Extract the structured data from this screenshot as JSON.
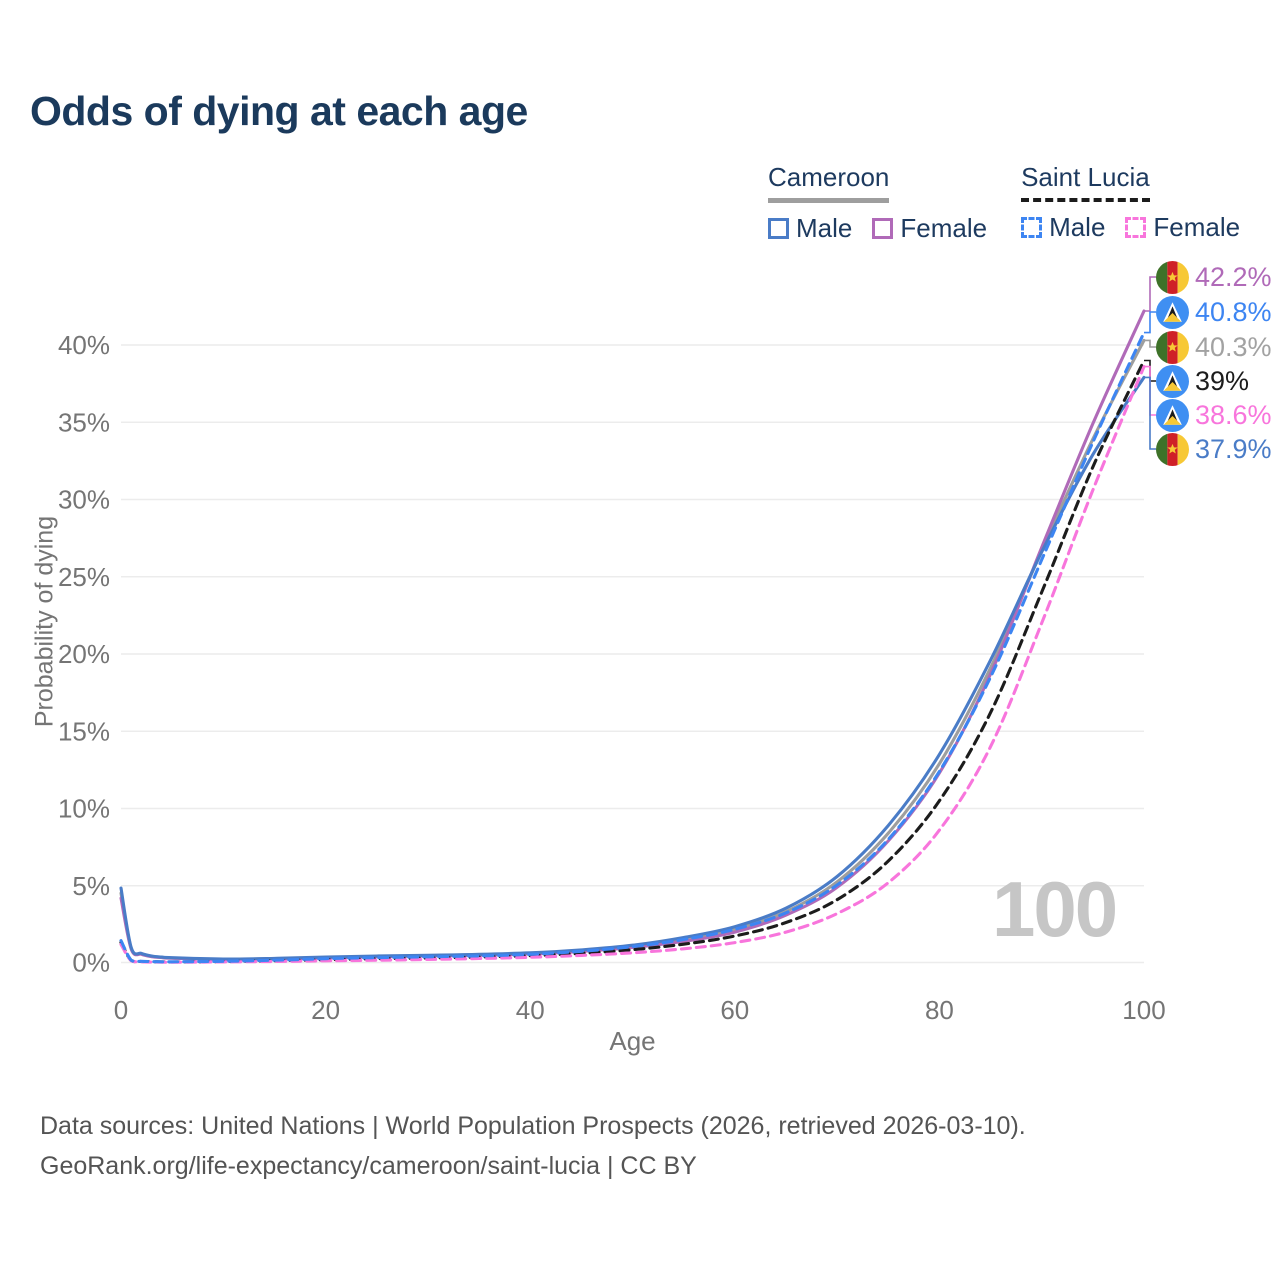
{
  "title": "Odds of dying at each age",
  "legend": {
    "groups": [
      {
        "name": "Cameroon",
        "underline_style": "solid",
        "underline_color": "#9e9e9e",
        "items": [
          {
            "label": "Male",
            "color": "#4a7cc7",
            "dashed": false
          },
          {
            "label": "Female",
            "color": "#b06ab8",
            "dashed": false
          }
        ]
      },
      {
        "name": "Saint Lucia",
        "underline_style": "dashed",
        "underline_color": "#1c1c1c",
        "items": [
          {
            "label": "Male",
            "color": "#3d85f2",
            "dashed": true
          },
          {
            "label": "Female",
            "color": "#f875dc",
            "dashed": true
          }
        ]
      }
    ]
  },
  "chart_data": {
    "type": "line",
    "title": "Odds of dying at each age",
    "xlabel": "Age",
    "ylabel": "Probability of dying",
    "watermark": "100",
    "xlim": [
      0,
      100
    ],
    "ylim": [
      0,
      43.5
    ],
    "x_ticks": [
      0,
      20,
      40,
      60,
      80,
      100
    ],
    "y_ticks": [
      {
        "value": 0,
        "label": "0%"
      },
      {
        "value": 5,
        "label": "5%"
      },
      {
        "value": 10,
        "label": "10%"
      },
      {
        "value": 15,
        "label": "15%"
      },
      {
        "value": 20,
        "label": "20%"
      },
      {
        "value": 25,
        "label": "25%"
      },
      {
        "value": 30,
        "label": "30%"
      },
      {
        "value": 35,
        "label": "35%"
      },
      {
        "value": 40,
        "label": "40%"
      }
    ],
    "grid": "horizontal",
    "legend_position": "top-right",
    "x": [
      0,
      1,
      2,
      3,
      4,
      5,
      10,
      15,
      20,
      25,
      30,
      35,
      40,
      45,
      50,
      55,
      60,
      65,
      70,
      75,
      80,
      85,
      90,
      95,
      100
    ],
    "series": [
      {
        "id": "cameroon_total",
        "name": "Cameroon — Both sexes",
        "color": "#9e9e9e",
        "dashed": false,
        "values": [
          4.52,
          0.95,
          0.59,
          0.43,
          0.36,
          0.32,
          0.24,
          0.28,
          0.35,
          0.42,
          0.48,
          0.53,
          0.62,
          0.8,
          1.08,
          1.52,
          2.17,
          3.32,
          5.25,
          8.4,
          12.9,
          19.1,
          26.7,
          33.9,
          40.3
        ]
      },
      {
        "id": "cameroon_female",
        "name": "Cameroon — Female",
        "color": "#b06ab8",
        "dashed": false,
        "values": [
          4.2,
          0.9,
          0.56,
          0.41,
          0.35,
          0.31,
          0.23,
          0.26,
          0.33,
          0.4,
          0.45,
          0.5,
          0.58,
          0.75,
          1.0,
          1.4,
          2.0,
          3.1,
          4.9,
          7.9,
          12.3,
          18.7,
          26.9,
          34.9,
          42.2
        ]
      },
      {
        "id": "cameroon_male",
        "name": "Cameroon — Male",
        "color": "#4a7cc7",
        "dashed": false,
        "values": [
          4.85,
          1.0,
          0.62,
          0.45,
          0.38,
          0.34,
          0.26,
          0.3,
          0.38,
          0.45,
          0.5,
          0.56,
          0.66,
          0.85,
          1.15,
          1.65,
          2.35,
          3.55,
          5.6,
          8.9,
          13.5,
          19.6,
          26.6,
          32.9,
          37.9
        ]
      },
      {
        "id": "saint_lucia_total",
        "name": "Saint Lucia — Both sexes",
        "color": "#1c1c1c",
        "dashed": true,
        "values": [
          1.33,
          0.16,
          0.1,
          0.08,
          0.07,
          0.065,
          0.09,
          0.14,
          0.21,
          0.27,
          0.32,
          0.38,
          0.47,
          0.63,
          0.86,
          1.22,
          1.75,
          2.62,
          4.1,
          6.6,
          10.5,
          16.2,
          24.0,
          32.1,
          39.0
        ]
      },
      {
        "id": "saint_lucia_female",
        "name": "Saint Lucia — Female",
        "color": "#f875dc",
        "dashed": true,
        "values": [
          1.2,
          0.14,
          0.08,
          0.06,
          0.055,
          0.05,
          0.07,
          0.1,
          0.14,
          0.18,
          0.23,
          0.29,
          0.37,
          0.49,
          0.66,
          0.92,
          1.32,
          2.0,
          3.2,
          5.2,
          8.6,
          14.0,
          22.0,
          30.6,
          38.6
        ]
      },
      {
        "id": "saint_lucia_male",
        "name": "Saint Lucia — Male",
        "color": "#3d85f2",
        "dashed": true,
        "values": [
          1.45,
          0.18,
          0.11,
          0.09,
          0.08,
          0.08,
          0.11,
          0.18,
          0.28,
          0.35,
          0.4,
          0.46,
          0.56,
          0.76,
          1.06,
          1.52,
          2.18,
          3.25,
          5.05,
          8.0,
          12.4,
          18.5,
          26.1,
          33.7,
          40.8
        ]
      }
    ],
    "end_labels": [
      {
        "series": "cameroon_female",
        "text": "42.2%",
        "color": "#b06ab8",
        "flag": "cameroon"
      },
      {
        "series": "saint_lucia_male",
        "text": "40.8%",
        "color": "#3d85f2",
        "flag": "saint_lucia"
      },
      {
        "series": "cameroon_total",
        "text": "40.3%",
        "color": "#a2a2a2",
        "flag": "cameroon"
      },
      {
        "series": "saint_lucia_total",
        "text": "39%",
        "color": "#1c1c1c",
        "flag": "saint_lucia"
      },
      {
        "series": "saint_lucia_female",
        "text": "38.6%",
        "color": "#f875dc",
        "flag": "saint_lucia"
      },
      {
        "series": "cameroon_male",
        "text": "37.9%",
        "color": "#4a7cc7",
        "flag": "cameroon"
      }
    ]
  },
  "footer": {
    "line1": "Data sources: United Nations | World Population Prospects (2026, retrieved 2026-03-10).",
    "line2": "GeoRank.org/life-expectancy/cameroon/saint-lucia | CC BY"
  }
}
